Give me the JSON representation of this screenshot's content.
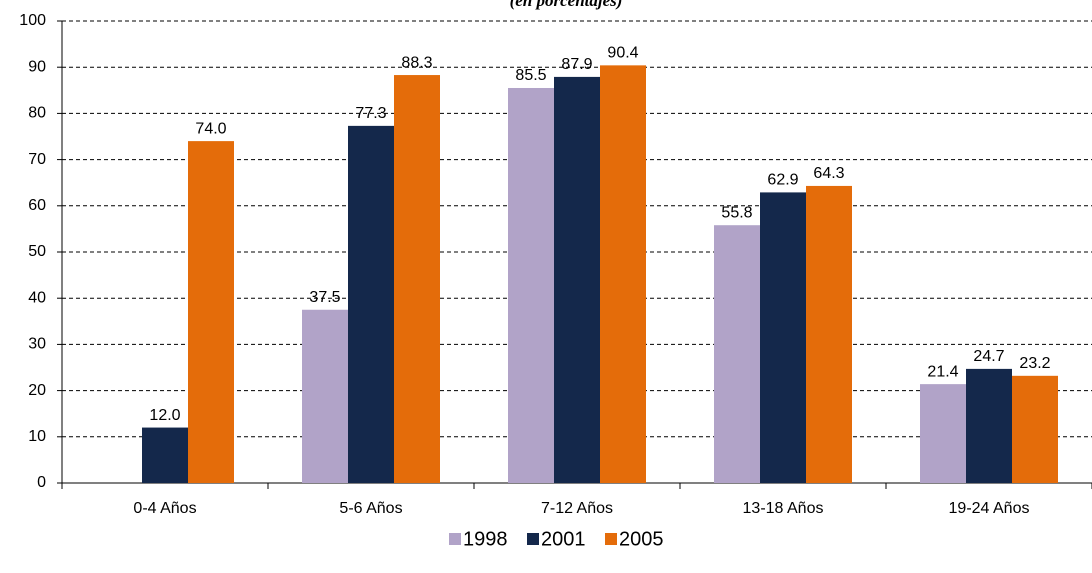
{
  "chart_data": {
    "type": "bar",
    "subtitle": "(en porcentajes)",
    "categories": [
      "0-4 Años",
      "5-6 Años",
      "7-12 Años",
      "13-18 Años",
      "19-24 Años"
    ],
    "series": [
      {
        "name": "1998",
        "color": "#b1a3c8",
        "values": [
          null,
          37.5,
          85.5,
          55.8,
          21.4
        ],
        "value_labels": [
          null,
          "37.5",
          "85.5",
          "55.8",
          "21.4"
        ]
      },
      {
        "name": "2001",
        "color": "#14284b",
        "values": [
          12.0,
          77.3,
          87.9,
          62.9,
          24.7
        ],
        "value_labels": [
          "12.0",
          "77.3",
          "87.9",
          "62.9",
          "24.7"
        ]
      },
      {
        "name": "2005",
        "color": "#e46c0a",
        "values": [
          74.0,
          88.3,
          90.4,
          64.3,
          23.2
        ],
        "value_labels": [
          "74.0",
          "88.3",
          "90.4",
          "64.3",
          "23.2"
        ]
      }
    ],
    "ylim": [
      0,
      100
    ],
    "yticks": [
      0,
      10,
      20,
      30,
      40,
      50,
      60,
      70,
      80,
      90,
      100
    ],
    "grid": true,
    "legend": "bottom"
  }
}
